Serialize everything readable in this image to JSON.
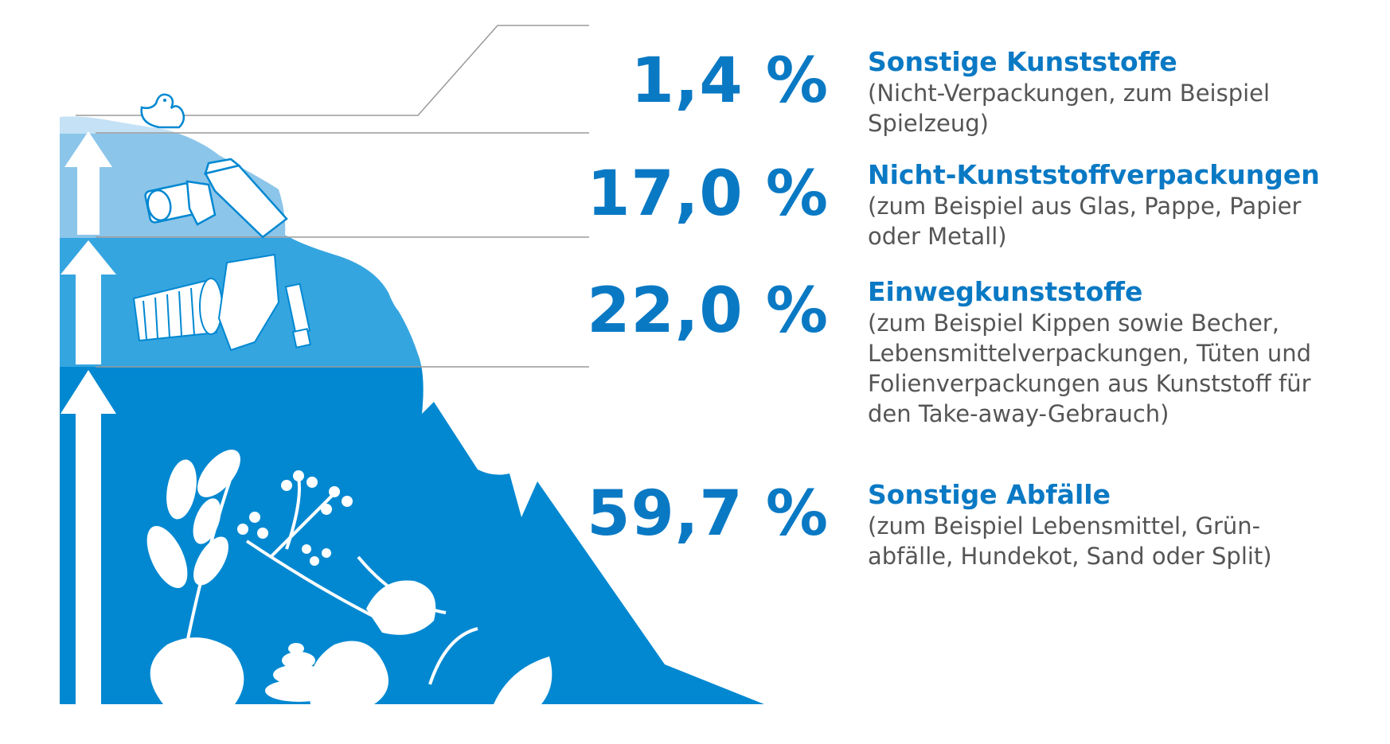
{
  "chart_data": {
    "type": "area",
    "unit": "%",
    "series": [
      {
        "value": 59.7,
        "value_label": "59,7 %",
        "name": "Sonstige Abfälle",
        "description": "(zum Beispiel Lebensmittel, Grün-\nabfälle, Hundekot, Sand oder Split)"
      },
      {
        "value": 22.0,
        "value_label": "22,0 %",
        "name": "Einwegkunststoffe",
        "description": "(zum Beispiel Kippen sowie Becher,\nLebensmittelverpackungen, Tüten und\nFolienverpackungen aus Kunststoff für\nden Take-away-Gebrauch)"
      },
      {
        "value": 17.0,
        "value_label": "17,0 %",
        "name": "Nicht-Kunststoffverpackungen",
        "description": "(zum Beispiel aus Glas, Pappe, Papier\noder Metall)"
      },
      {
        "value": 1.4,
        "value_label": "1,4 %",
        "name": "Sonstige Kunststoffe",
        "description": "(Nicht-Verpackungen, zum Beispiel\nSpielzeug)"
      }
    ]
  },
  "colors": {
    "layer1": "#0288d1",
    "layer2": "#35a5e0",
    "layer3": "#8cc5ea",
    "layer4": "#c4e1f5",
    "text_blue": "#0a79c4",
    "text_grey": "#555555",
    "line_grey": "#9a9a9a"
  },
  "icons": [
    "duck-icon",
    "milk-carton-icon",
    "can-icon",
    "cup-icon",
    "chips-bag-icon",
    "cigarette-icon",
    "leaf-icon",
    "dog-poop-icon",
    "berry-branch-icon",
    "arrow-up-icon"
  ]
}
